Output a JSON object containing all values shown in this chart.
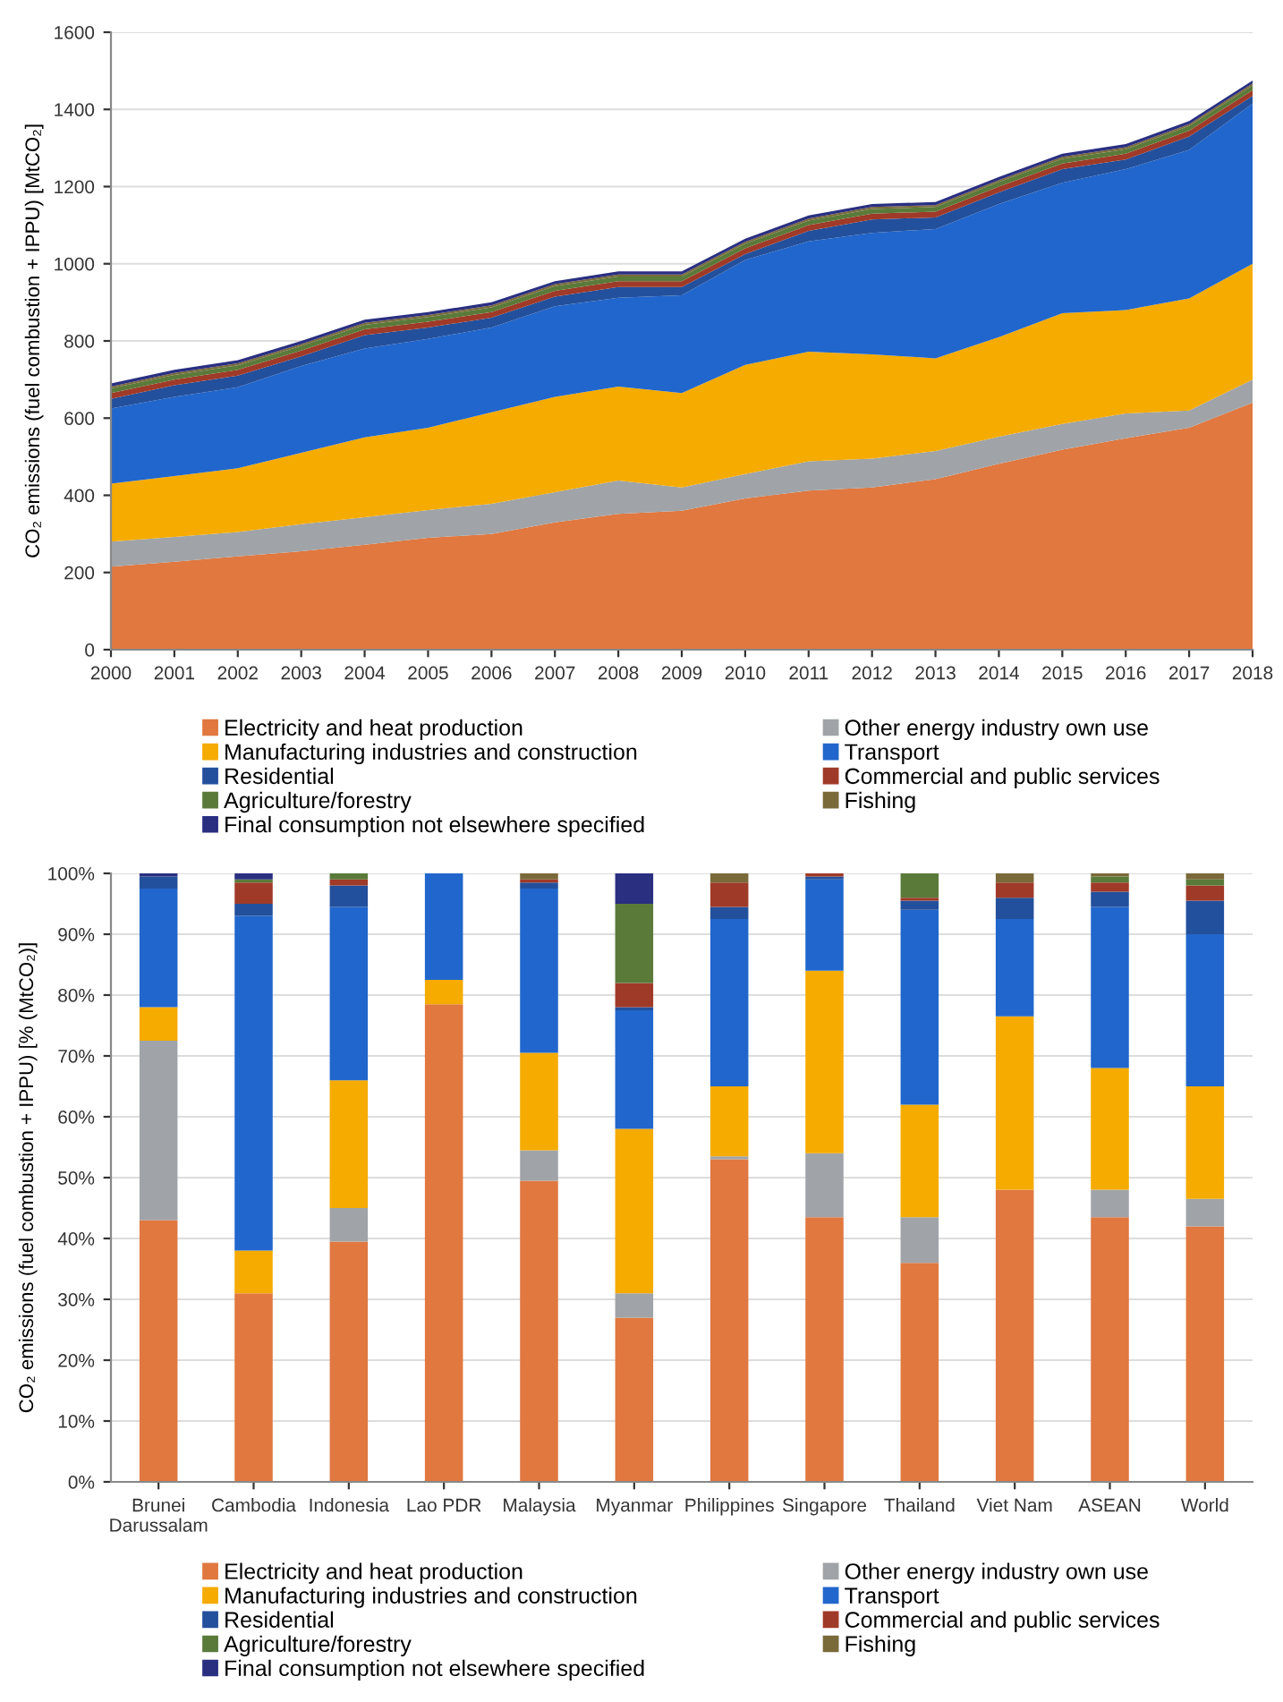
{
  "chart_data": [
    {
      "type": "area",
      "stacked": true,
      "ylabel": "CO₂ emissions (fuel combustion + IPPU) [MtCO₂]",
      "x": [
        2000,
        2001,
        2002,
        2003,
        2004,
        2005,
        2006,
        2007,
        2008,
        2009,
        2010,
        2011,
        2012,
        2013,
        2014,
        2015,
        2016,
        2017,
        2018
      ],
      "xlim": [
        2000,
        2018
      ],
      "xticks": [
        2000,
        2001,
        2002,
        2003,
        2004,
        2005,
        2006,
        2007,
        2008,
        2009,
        2010,
        2011,
        2012,
        2013,
        2014,
        2015,
        2016,
        2017,
        2018
      ],
      "ylim": [
        0,
        1600
      ],
      "yticks": [
        0,
        200,
        400,
        600,
        800,
        1000,
        1200,
        1400,
        1600
      ],
      "grid": "y",
      "legend": "bottom",
      "series": [
        {
          "name": "Electricity and heat production",
          "color": "#e07840",
          "values": [
            215,
            228,
            242,
            255,
            272,
            290,
            300,
            330,
            352,
            360,
            392,
            412,
            420,
            442,
            482,
            518,
            548,
            575,
            640
          ]
        },
        {
          "name": "Other energy industry own use",
          "color": "#a0a4a8",
          "values": [
            65,
            64,
            63,
            70,
            71,
            72,
            78,
            78,
            86,
            60,
            63,
            76,
            75,
            73,
            70,
            67,
            64,
            45,
            60
          ]
        },
        {
          "name": "Manufacturing industries and construction",
          "color": "#f5ab00",
          "values": [
            150,
            158,
            165,
            185,
            207,
            213,
            237,
            247,
            244,
            245,
            283,
            284,
            270,
            240,
            258,
            287,
            268,
            290,
            300
          ]
        },
        {
          "name": "Transport",
          "color": "#2166cc",
          "values": [
            195,
            205,
            210,
            225,
            230,
            230,
            220,
            235,
            230,
            253,
            272,
            286,
            315,
            335,
            345,
            338,
            365,
            385,
            415
          ]
        },
        {
          "name": "Residential",
          "color": "#23509c",
          "values": [
            25,
            30,
            30,
            25,
            35,
            30,
            25,
            25,
            28,
            22,
            15,
            27,
            35,
            30,
            30,
            35,
            25,
            35,
            20
          ]
        },
        {
          "name": "Commercial and public services",
          "color": "#a03a28",
          "values": [
            15,
            15,
            15,
            15,
            15,
            15,
            15,
            15,
            15,
            15,
            15,
            15,
            15,
            15,
            15,
            15,
            15,
            15,
            15
          ]
        },
        {
          "name": "Agriculture/forestry",
          "color": "#5a7a3a",
          "values": [
            12,
            12,
            12,
            12,
            12,
            12,
            12,
            12,
            12,
            12,
            12,
            12,
            12,
            12,
            12,
            12,
            12,
            12,
            12
          ]
        },
        {
          "name": "Fishing",
          "color": "#7a6a3a",
          "values": [
            5,
            5,
            5,
            5,
            5,
            5,
            5,
            5,
            5,
            5,
            5,
            5,
            5,
            5,
            5,
            5,
            5,
            5,
            5
          ]
        },
        {
          "name": "Final consumption not elsewhere specified",
          "color": "#2a2f80",
          "values": [
            8,
            8,
            8,
            8,
            8,
            8,
            8,
            8,
            8,
            8,
            8,
            8,
            8,
            8,
            8,
            8,
            8,
            8,
            8
          ]
        }
      ]
    },
    {
      "type": "bar",
      "stacked": true,
      "ylabel": "CO₂ emissions (fuel combustion + IPPU) [% (MtCO₂)]",
      "categories": [
        "Brunei\nDarussalam",
        "Cambodia",
        "Indonesia",
        "Lao PDR",
        "Malaysia",
        "Myanmar",
        "Philippines",
        "Singapore",
        "Thailand",
        "Viet Nam",
        "ASEAN",
        "World"
      ],
      "ylim": [
        0,
        100
      ],
      "yticks": [
        {
          "value": 0,
          "label": "0%"
        },
        {
          "value": 10,
          "label": "10%"
        },
        {
          "value": 20,
          "label": "20%"
        },
        {
          "value": 30,
          "label": "30%"
        },
        {
          "value": 40,
          "label": "40%"
        },
        {
          "value": 50,
          "label": "50%"
        },
        {
          "value": 60,
          "label": "60%"
        },
        {
          "value": 70,
          "label": "70%"
        },
        {
          "value": 80,
          "label": "80%"
        },
        {
          "value": 90,
          "label": "90%"
        },
        {
          "value": 100,
          "label": "100%"
        }
      ],
      "grid": "y",
      "legend": "bottom",
      "series": [
        {
          "name": "Electricity and heat production",
          "color": "#e07840",
          "values": [
            43,
            31,
            39.5,
            78.5,
            49.5,
            27,
            53,
            43.5,
            36,
            48,
            43.5,
            42
          ]
        },
        {
          "name": "Other energy industry own use",
          "color": "#a0a4a8",
          "values": [
            29.5,
            0,
            5.5,
            0,
            5,
            4,
            0.5,
            10.5,
            7.5,
            0,
            4.5,
            4.5
          ]
        },
        {
          "name": "Manufacturing industries and construction",
          "color": "#f5ab00",
          "values": [
            5.5,
            7,
            21,
            4,
            16,
            27,
            11.5,
            30,
            18.5,
            28.5,
            20,
            18.5
          ]
        },
        {
          "name": "Transport",
          "color": "#2166cc",
          "values": [
            19.5,
            55,
            28.5,
            17.5,
            27,
            19.5,
            27.5,
            15,
            32,
            16,
            26.5,
            25
          ]
        },
        {
          "name": "Residential",
          "color": "#23509c",
          "values": [
            2,
            2,
            3.5,
            0,
            1,
            0.5,
            2,
            0.5,
            1.5,
            3.5,
            2.5,
            5.5
          ]
        },
        {
          "name": "Commercial and public services",
          "color": "#a03a28",
          "values": [
            0,
            3.5,
            1,
            0,
            0.5,
            4,
            4,
            0.5,
            0.5,
            2.5,
            1.5,
            2.5
          ]
        },
        {
          "name": "Agriculture/forestry",
          "color": "#5a7a3a",
          "values": [
            0,
            0.5,
            1,
            0,
            0,
            13,
            0,
            0,
            4,
            0,
            1,
            1
          ]
        },
        {
          "name": "Fishing",
          "color": "#7a6a3a",
          "values": [
            0,
            0,
            0,
            0,
            1,
            0,
            1.5,
            0,
            0,
            1.5,
            0.5,
            1
          ]
        },
        {
          "name": "Final consumption not elsewhere specified",
          "color": "#2a2f80",
          "values": [
            0.5,
            1,
            0,
            0,
            0,
            5,
            0,
            0,
            0,
            0,
            0,
            0
          ]
        }
      ]
    }
  ]
}
